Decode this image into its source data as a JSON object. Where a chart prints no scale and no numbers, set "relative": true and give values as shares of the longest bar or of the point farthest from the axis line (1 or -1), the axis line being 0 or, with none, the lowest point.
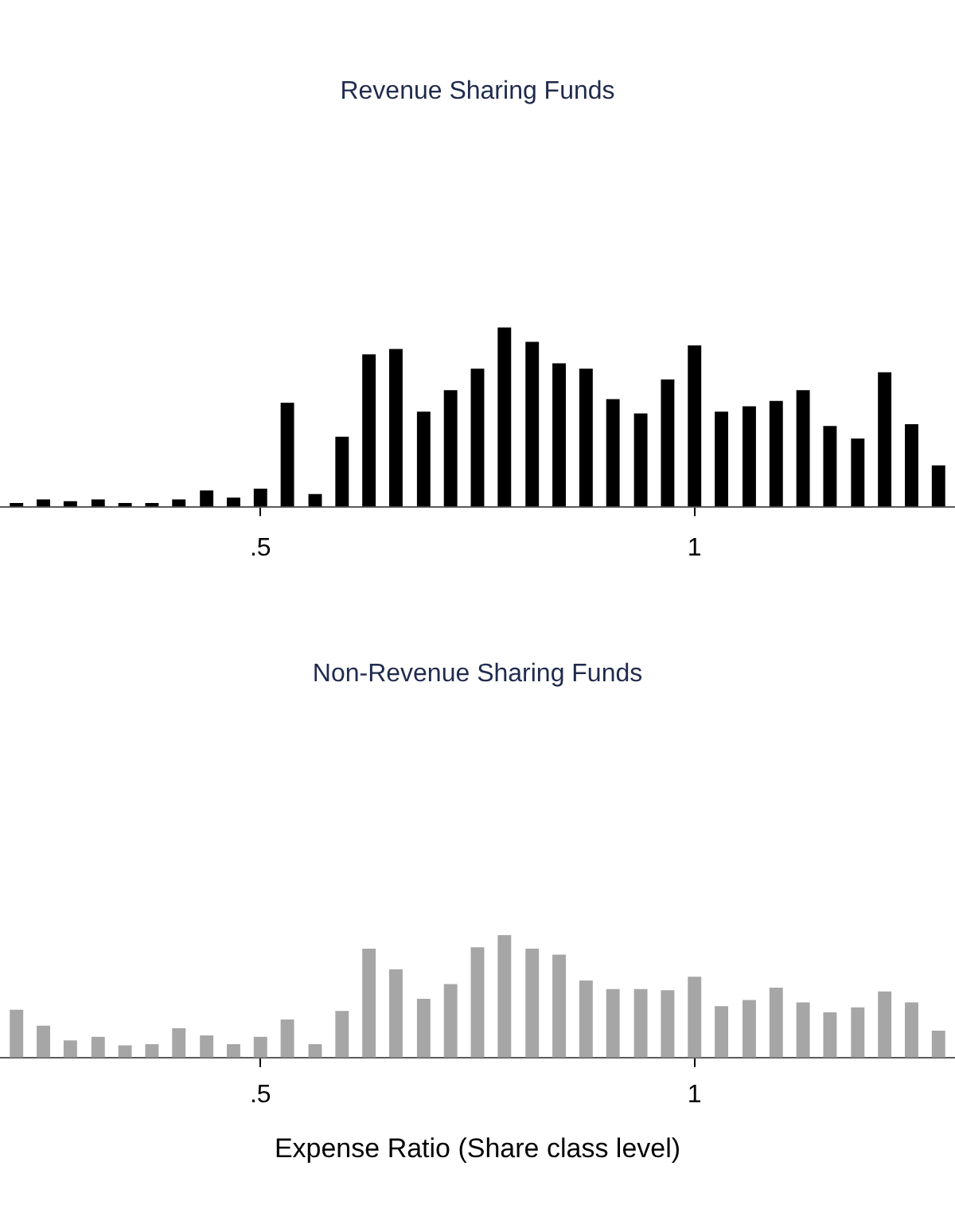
{
  "chart_data": [
    {
      "type": "bar",
      "title": "Revenue Sharing Funds",
      "relative": true,
      "color": "#000000",
      "x": [
        0.219,
        0.25,
        0.281,
        0.313,
        0.344,
        0.375,
        0.406,
        0.438,
        0.469,
        0.5,
        0.531,
        0.563,
        0.594,
        0.625,
        0.656,
        0.688,
        0.719,
        0.75,
        0.781,
        0.813,
        0.844,
        0.875,
        0.906,
        0.938,
        0.969,
        1,
        1.031,
        1.063,
        1.094,
        1.125,
        1.156,
        1.188,
        1.219,
        1.25,
        1.281
      ],
      "values": [
        0.02,
        0.04,
        0.03,
        0.04,
        0.02,
        0.02,
        0.04,
        0.09,
        0.05,
        0.1,
        0.58,
        0.07,
        0.39,
        0.85,
        0.88,
        0.53,
        0.65,
        0.77,
        1,
        0.92,
        0.8,
        0.77,
        0.6,
        0.52,
        0.71,
        0.9,
        0.53,
        0.56,
        0.59,
        0.65,
        0.45,
        0.38,
        0.75,
        0.46,
        0.23
      ],
      "xlim": [
        0.2,
        1.3
      ],
      "xticks": [
        {
          "value": 0.5,
          "label": ".5"
        },
        1
      ]
    },
    {
      "type": "bar",
      "title": "Non-Revenue Sharing Funds",
      "xlabel": "Expense Ratio (Share class level)",
      "relative": true,
      "color": "#a6a6a6",
      "x": [
        0.219,
        0.25,
        0.281,
        0.313,
        0.344,
        0.375,
        0.406,
        0.438,
        0.469,
        0.5,
        0.531,
        0.563,
        0.594,
        0.625,
        0.656,
        0.688,
        0.719,
        0.75,
        0.781,
        0.813,
        0.844,
        0.875,
        0.906,
        0.938,
        0.969,
        1,
        1.031,
        1.063,
        1.094,
        1.125,
        1.156,
        1.188,
        1.219,
        1.25,
        1.281
      ],
      "values": [
        0.39,
        0.26,
        0.14,
        0.17,
        0.1,
        0.11,
        0.24,
        0.18,
        0.11,
        0.17,
        0.31,
        0.11,
        0.38,
        0.89,
        0.72,
        0.48,
        0.6,
        0.9,
        1,
        0.89,
        0.84,
        0.63,
        0.56,
        0.56,
        0.55,
        0.66,
        0.42,
        0.47,
        0.57,
        0.45,
        0.37,
        0.41,
        0.54,
        0.45,
        0.22
      ],
      "xlim": [
        0.2,
        1.3
      ],
      "xticks": [
        {
          "value": 0.5,
          "label": ".5"
        },
        1
      ]
    }
  ]
}
